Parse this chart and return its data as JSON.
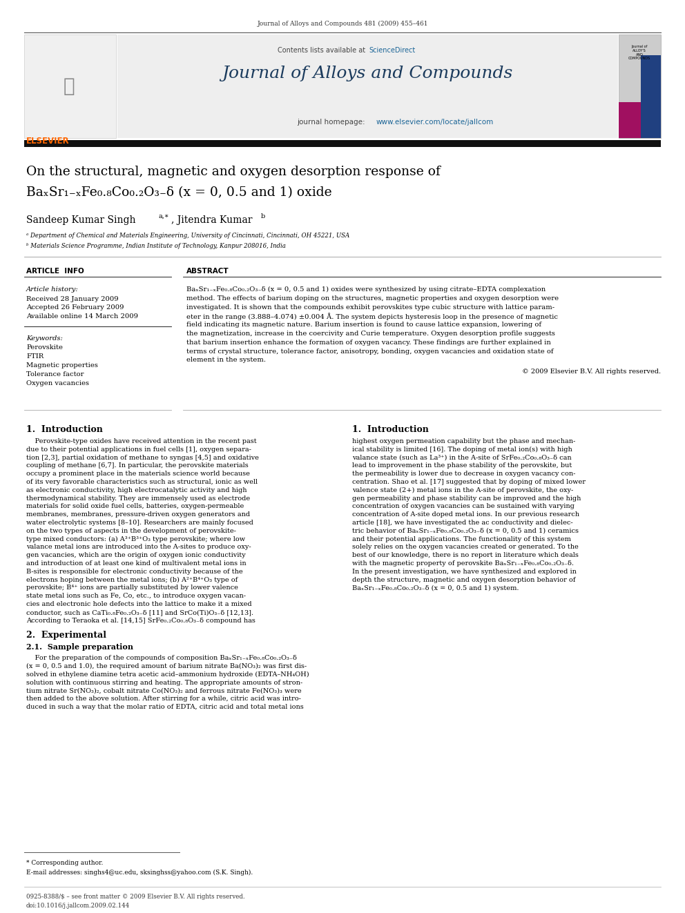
{
  "page_width": 9.92,
  "page_height": 13.23,
  "bg_color": "#ffffff",
  "top_journal_ref": "Journal of Alloys and Compounds 481 (2009) 455–461",
  "header_bg": "#eeeeee",
  "sciencedirect_color": "#1a6496",
  "journal_name": "Journal of Alloys and Compounds",
  "homepage_url_color": "#1a6496",
  "article_title_line1": "On the structural, magnetic and oxygen desorption response of",
  "article_title_line2": "BaₓSr₁₋ₓFe₀.₈Co₀.₂O₃₋δ (x = 0, 0.5 and 1) oxide",
  "affil_a": "ᵃ Department of Chemical and Materials Engineering, University of Cincinnati, Cincinnati, OH 45221, USA",
  "affil_b": "ᵇ Materials Science Programme, Indian Institute of Technology, Kanpur 208016, India",
  "section_article_info": "ARTICLE  INFO",
  "section_abstract": "ABSTRACT",
  "history_label": "Article history:",
  "received": "Received 28 January 2009",
  "accepted": "Accepted 26 February 2009",
  "available": "Available online 14 March 2009",
  "keywords_label": "Keywords:",
  "keywords": [
    "Perovskite",
    "FTIR",
    "Magnetic properties",
    "Tolerance factor",
    "Oxygen vacancies"
  ],
  "copyright": "© 2009 Elsevier B.V. All rights reserved.",
  "section1_title": "1.  Introduction",
  "section2_title": "2.  Experimental",
  "section21_title": "2.1.  Sample preparation",
  "footnote_star": "* Corresponding author.",
  "footnote_email": "E-mail addresses: singhs4@uc.edu, sksinghss@yahoo.com (S.K. Singh).",
  "footer_issn": "0925-8388/$ – see front matter © 2009 Elsevier B.V. All rights reserved.",
  "footer_doi": "doi:10.1016/j.jallcom.2009.02.144",
  "elsevier_color": "#ff6600",
  "link_color": "#1a6496"
}
